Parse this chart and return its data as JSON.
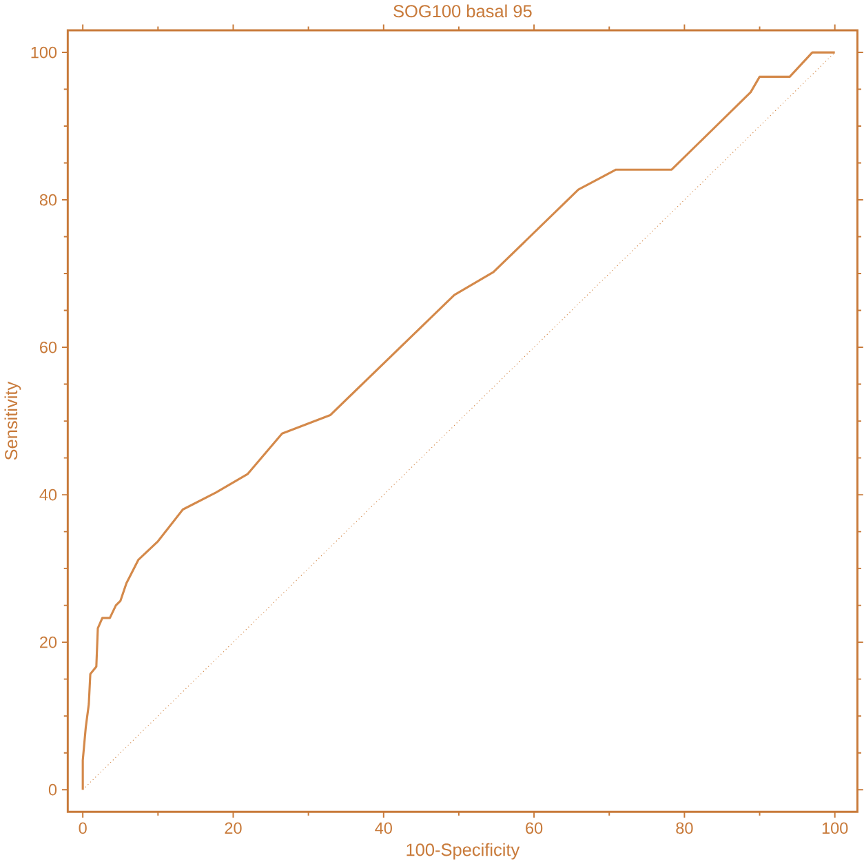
{
  "chart_data": {
    "type": "line",
    "title": "SOG100 basal 95",
    "xlabel": "100-Specificity",
    "ylabel": "Sensitivity",
    "xlim": [
      -2,
      103
    ],
    "ylim": [
      -3,
      103
    ],
    "xticks": [
      0,
      20,
      40,
      60,
      80,
      100
    ],
    "yticks": [
      0,
      20,
      40,
      60,
      80,
      100
    ],
    "series": [
      {
        "color": "#d4894a",
        "line_style": "solid",
        "x": [
          0,
          0,
          0.4,
          0.8,
          1,
          1.8,
          2,
          2.6,
          3.6,
          4.4,
          5,
          5.8,
          7.4,
          10,
          13.3,
          17.7,
          21.9,
          26.5,
          32.9,
          49.4,
          54.6,
          65.9,
          70.9,
          78.3,
          88.8,
          90,
          94,
          97,
          100
        ],
        "values": [
          0,
          4,
          8.5,
          11.6,
          15.7,
          16.7,
          21.9,
          23.3,
          23.3,
          25,
          25.6,
          28,
          31.2,
          33.7,
          38,
          40.3,
          42.8,
          48.3,
          50.8,
          67.1,
          70.2,
          81.4,
          84.1,
          84.1,
          94.6,
          96.7,
          96.7,
          100,
          100
        ]
      },
      {
        "color": "#d4894a",
        "line_style": "dotted",
        "x": [
          0,
          100
        ],
        "values": [
          0,
          100
        ]
      }
    ]
  }
}
